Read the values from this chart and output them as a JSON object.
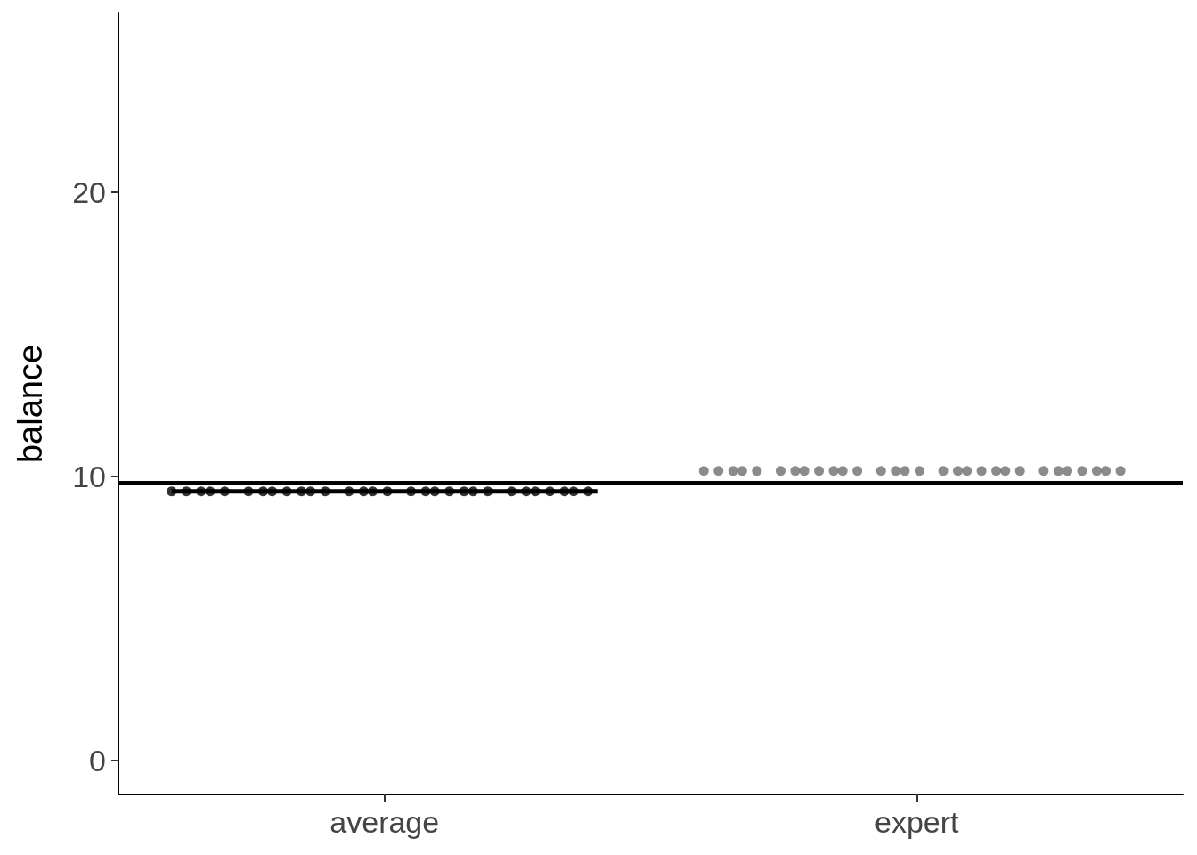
{
  "chart_data": {
    "type": "scatter",
    "ylabel": "balance",
    "categories": [
      "average",
      "expert"
    ],
    "ylim": [
      -1.2,
      26.3
    ],
    "yticks": [
      0,
      10,
      20
    ],
    "grid": false,
    "marker": "circle",
    "series": [
      {
        "type": "box",
        "color": "#000000",
        "boxes": [
          {
            "low": 9.47,
            "q1": 9.47,
            "median": 9.47,
            "q3": 9.47,
            "high": 9.47
          },
          null
        ]
      },
      {
        "color": "#000000",
        "x": [
          "average",
          "average",
          "average",
          "average",
          "average",
          "average",
          "average",
          "average",
          "average",
          "average",
          "average",
          "average",
          "average",
          "average",
          "average",
          "average",
          "average",
          "average",
          "average",
          "average",
          "average",
          "average",
          "average",
          "average",
          "average",
          "average",
          "average",
          "average",
          "average",
          "average"
        ],
        "values": [
          9.47,
          9.47,
          9.47,
          9.47,
          9.47,
          9.47,
          9.47,
          9.47,
          9.47,
          9.47,
          9.47,
          9.47,
          9.47,
          9.47,
          9.47,
          9.47,
          9.47,
          9.47,
          9.47,
          9.47,
          9.47,
          9.47,
          9.47,
          9.47,
          9.47,
          9.47,
          9.47,
          9.47,
          9.47,
          9.47
        ]
      },
      {
        "color": "#6e6e6e",
        "x": [
          "expert",
          "expert",
          "expert",
          "expert",
          "expert",
          "expert",
          "expert",
          "expert",
          "expert",
          "expert",
          "expert",
          "expert",
          "expert",
          "expert",
          "expert",
          "expert",
          "expert",
          "expert",
          "expert",
          "expert",
          "expert",
          "expert",
          "expert",
          "expert",
          "expert",
          "expert",
          "expert",
          "expert",
          "expert",
          "expert"
        ],
        "values": [
          10.19,
          10.19,
          10.19,
          10.19,
          10.19,
          10.19,
          10.19,
          10.19,
          10.19,
          10.19,
          10.19,
          10.19,
          10.19,
          10.19,
          10.19,
          10.19,
          10.19,
          10.19,
          10.19,
          10.19,
          10.19,
          10.19,
          10.19,
          10.19,
          10.19,
          10.19,
          10.19,
          10.19,
          10.19,
          10.19
        ]
      }
    ],
    "ref_lines": [
      {
        "axis": "y",
        "value": 9.78,
        "color": "#000000",
        "line_style": "solid"
      }
    ]
  }
}
